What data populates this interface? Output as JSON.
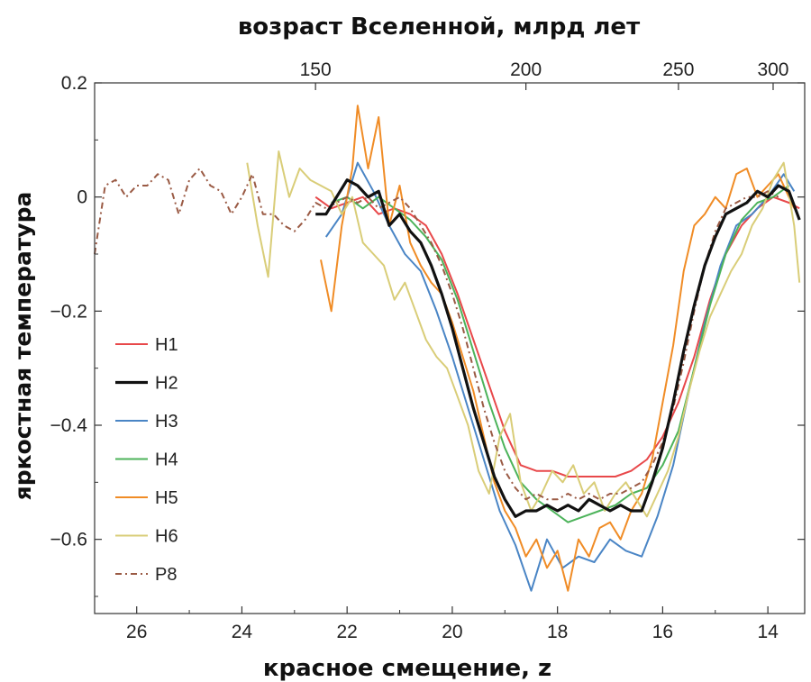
{
  "chart_data": {
    "type": "line",
    "title_top": "возраст Вселенной, млрд лет",
    "xlabel": "красное смещение, z",
    "ylabel": "яркостная температура",
    "x_reversed": true,
    "xlim": [
      26.8,
      13.3
    ],
    "ylim": [
      -0.73,
      0.2
    ],
    "x_ticks": [
      26,
      24,
      22,
      20,
      18,
      16,
      14
    ],
    "y_ticks": [
      0.2,
      0,
      -0.2,
      -0.4,
      -0.6
    ],
    "y_tick_labels": [
      "0.2",
      "0",
      "−0.2",
      "−0.4",
      "−0.6"
    ],
    "top_ticks": [
      {
        "label": "150",
        "z": 22.6
      },
      {
        "label": "200",
        "z": 18.6
      },
      {
        "label": "250",
        "z": 15.7
      },
      {
        "label": "300",
        "z": 13.9
      }
    ],
    "legend_position": "left",
    "series": [
      {
        "name": "H1",
        "color": "#e8484a",
        "width": 2,
        "dash": "",
        "x": [
          22.6,
          22.3,
          22.0,
          21.7,
          21.4,
          21.1,
          20.8,
          20.5,
          20.2,
          19.9,
          19.6,
          19.3,
          19.0,
          18.7,
          18.4,
          18.1,
          17.8,
          17.5,
          17.2,
          16.9,
          16.6,
          16.3,
          16.0,
          15.7,
          15.4,
          15.1,
          14.8,
          14.5,
          14.2,
          13.9,
          13.6,
          13.4
        ],
        "values": [
          0.0,
          -0.02,
          -0.01,
          0.0,
          -0.03,
          -0.02,
          -0.03,
          -0.05,
          -0.1,
          -0.17,
          -0.25,
          -0.33,
          -0.41,
          -0.47,
          -0.48,
          -0.48,
          -0.49,
          -0.49,
          -0.49,
          -0.49,
          -0.48,
          -0.46,
          -0.42,
          -0.36,
          -0.28,
          -0.18,
          -0.1,
          -0.05,
          -0.02,
          0.0,
          -0.01,
          -0.02
        ]
      },
      {
        "name": "H2",
        "color": "#111111",
        "width": 3.2,
        "dash": "",
        "x": [
          22.6,
          22.4,
          22.2,
          22.0,
          21.8,
          21.6,
          21.4,
          21.2,
          21.0,
          20.8,
          20.6,
          20.4,
          20.2,
          20.0,
          19.8,
          19.6,
          19.4,
          19.2,
          19.0,
          18.8,
          18.6,
          18.4,
          18.2,
          18.0,
          17.8,
          17.6,
          17.4,
          17.2,
          17.0,
          16.8,
          16.6,
          16.4,
          16.2,
          16.0,
          15.8,
          15.6,
          15.4,
          15.2,
          15.0,
          14.8,
          14.6,
          14.4,
          14.2,
          14.0,
          13.8,
          13.6,
          13.4
        ],
        "values": [
          -0.03,
          -0.03,
          0.0,
          0.03,
          0.02,
          0.0,
          0.01,
          -0.05,
          -0.03,
          -0.06,
          -0.08,
          -0.12,
          -0.17,
          -0.23,
          -0.3,
          -0.37,
          -0.43,
          -0.49,
          -0.53,
          -0.56,
          -0.55,
          -0.55,
          -0.54,
          -0.55,
          -0.54,
          -0.55,
          -0.53,
          -0.54,
          -0.55,
          -0.54,
          -0.55,
          -0.55,
          -0.5,
          -0.44,
          -0.36,
          -0.27,
          -0.19,
          -0.12,
          -0.07,
          -0.03,
          -0.02,
          -0.01,
          0.01,
          0.0,
          0.02,
          0.01,
          -0.04
        ]
      },
      {
        "name": "H3",
        "color": "#4a85c5",
        "width": 2,
        "dash": "",
        "x": [
          22.4,
          22.1,
          21.8,
          21.5,
          21.2,
          20.9,
          20.6,
          20.3,
          20.0,
          19.7,
          19.4,
          19.1,
          18.8,
          18.5,
          18.2,
          17.9,
          17.6,
          17.3,
          17.0,
          16.7,
          16.4,
          16.1,
          15.8,
          15.5,
          15.2,
          14.9,
          14.6,
          14.3,
          14.0,
          13.7,
          13.5
        ],
        "values": [
          -0.07,
          -0.03,
          0.06,
          0.01,
          -0.05,
          -0.1,
          -0.13,
          -0.2,
          -0.28,
          -0.37,
          -0.46,
          -0.55,
          -0.61,
          -0.69,
          -0.6,
          -0.65,
          -0.63,
          -0.64,
          -0.6,
          -0.62,
          -0.63,
          -0.56,
          -0.47,
          -0.34,
          -0.22,
          -0.12,
          -0.05,
          -0.03,
          0.0,
          0.04,
          0.01
        ]
      },
      {
        "name": "H4",
        "color": "#4cb35a",
        "width": 2,
        "dash": "",
        "x": [
          22.3,
          22.0,
          21.7,
          21.4,
          21.1,
          20.8,
          20.5,
          20.2,
          19.9,
          19.6,
          19.3,
          19.0,
          18.7,
          18.4,
          18.1,
          17.8,
          17.5,
          17.2,
          16.9,
          16.6,
          16.3,
          16.0,
          15.7,
          15.4,
          15.1,
          14.8,
          14.5,
          14.2,
          13.9,
          13.6
        ],
        "values": [
          -0.01,
          0.0,
          -0.02,
          0.0,
          -0.02,
          -0.04,
          -0.07,
          -0.11,
          -0.18,
          -0.27,
          -0.36,
          -0.44,
          -0.5,
          -0.53,
          -0.55,
          -0.57,
          -0.56,
          -0.55,
          -0.54,
          -0.52,
          -0.51,
          -0.47,
          -0.41,
          -0.3,
          -0.19,
          -0.1,
          -0.04,
          -0.01,
          0.0,
          0.02
        ]
      },
      {
        "name": "H5",
        "color": "#f08c26",
        "width": 2,
        "dash": "",
        "x": [
          22.5,
          22.3,
          22.1,
          21.9,
          21.8,
          21.6,
          21.4,
          21.2,
          21.0,
          20.8,
          20.6,
          20.4,
          20.2,
          20.0,
          19.8,
          19.6,
          19.4,
          19.2,
          19.0,
          18.8,
          18.6,
          18.4,
          18.2,
          18.0,
          17.8,
          17.6,
          17.4,
          17.2,
          17.0,
          16.8,
          16.6,
          16.4,
          16.2,
          16.0,
          15.8,
          15.6,
          15.4,
          15.2,
          15.0,
          14.8,
          14.6,
          14.4,
          14.2,
          14.0,
          13.8,
          13.6,
          13.5
        ],
        "values": [
          -0.11,
          -0.2,
          -0.05,
          0.05,
          0.16,
          0.05,
          0.14,
          -0.05,
          0.02,
          -0.08,
          -0.12,
          -0.15,
          -0.17,
          -0.22,
          -0.28,
          -0.34,
          -0.42,
          -0.5,
          -0.55,
          -0.58,
          -0.63,
          -0.6,
          -0.65,
          -0.62,
          -0.69,
          -0.6,
          -0.63,
          -0.58,
          -0.57,
          -0.6,
          -0.55,
          -0.52,
          -0.46,
          -0.36,
          -0.26,
          -0.13,
          -0.05,
          -0.03,
          0.0,
          -0.02,
          0.04,
          0.05,
          0.0,
          0.02,
          0.04,
          0.0,
          -0.02
        ]
      },
      {
        "name": "H6",
        "color": "#d9cd78",
        "width": 2,
        "dash": "",
        "x": [
          23.9,
          23.7,
          23.5,
          23.3,
          23.1,
          22.9,
          22.7,
          22.5,
          22.3,
          22.1,
          21.9,
          21.7,
          21.5,
          21.3,
          21.1,
          20.9,
          20.7,
          20.5,
          20.3,
          20.1,
          19.9,
          19.7,
          19.5,
          19.3,
          19.1,
          18.9,
          18.7,
          18.5,
          18.3,
          18.1,
          17.9,
          17.7,
          17.5,
          17.3,
          17.1,
          16.9,
          16.7,
          16.5,
          16.3,
          16.1,
          15.9,
          15.7,
          15.5,
          15.3,
          15.1,
          14.9,
          14.7,
          14.5,
          14.3,
          14.1,
          13.9,
          13.7,
          13.5,
          13.4
        ],
        "values": [
          0.06,
          -0.05,
          -0.14,
          0.08,
          0.0,
          0.05,
          0.03,
          0.02,
          0.01,
          -0.03,
          0.0,
          -0.08,
          -0.1,
          -0.12,
          -0.18,
          -0.15,
          -0.2,
          -0.25,
          -0.28,
          -0.3,
          -0.35,
          -0.4,
          -0.48,
          -0.52,
          -0.42,
          -0.38,
          -0.5,
          -0.55,
          -0.52,
          -0.48,
          -0.5,
          -0.47,
          -0.52,
          -0.5,
          -0.55,
          -0.52,
          -0.5,
          -0.53,
          -0.56,
          -0.52,
          -0.48,
          -0.42,
          -0.34,
          -0.27,
          -0.21,
          -0.17,
          -0.13,
          -0.1,
          -0.05,
          -0.02,
          0.03,
          0.06,
          -0.05,
          -0.15
        ]
      },
      {
        "name": "P8",
        "color": "#9a5a44",
        "width": 2,
        "dash": "7,4,2,4",
        "x": [
          26.8,
          26.6,
          26.4,
          26.2,
          26.0,
          25.8,
          25.6,
          25.4,
          25.2,
          25.0,
          24.8,
          24.6,
          24.4,
          24.2,
          24.0,
          23.8,
          23.6,
          23.4,
          23.2,
          23.0,
          22.8,
          22.6,
          22.4,
          22.2,
          22.0,
          21.8,
          21.6,
          21.4,
          21.2,
          21.0,
          20.8,
          20.6,
          20.4,
          20.2,
          20.0,
          19.8,
          19.6,
          19.4,
          19.2,
          19.0,
          18.8,
          18.6,
          18.4,
          18.2,
          18.0,
          17.8,
          17.6,
          17.4,
          17.2,
          17.0,
          16.8,
          16.6,
          16.4,
          16.2,
          16.0,
          15.8,
          15.6,
          15.4,
          15.2,
          15.0,
          14.8,
          14.6,
          14.4,
          14.2,
          14.0,
          13.8
        ],
        "values": [
          -0.1,
          0.02,
          0.03,
          0.0,
          0.02,
          0.02,
          0.04,
          0.03,
          -0.03,
          0.03,
          0.05,
          0.02,
          0.01,
          -0.03,
          0.0,
          0.04,
          -0.03,
          -0.03,
          -0.05,
          -0.06,
          -0.04,
          -0.01,
          -0.02,
          -0.01,
          0.0,
          -0.01,
          0.0,
          -0.02,
          -0.01,
          0.0,
          -0.02,
          -0.05,
          -0.08,
          -0.12,
          -0.17,
          -0.23,
          -0.3,
          -0.37,
          -0.43,
          -0.48,
          -0.51,
          -0.53,
          -0.52,
          -0.53,
          -0.53,
          -0.52,
          -0.53,
          -0.52,
          -0.53,
          -0.52,
          -0.52,
          -0.51,
          -0.5,
          -0.47,
          -0.43,
          -0.37,
          -0.29,
          -0.2,
          -0.12,
          -0.06,
          -0.02,
          -0.01,
          0.0,
          0.0,
          0.01,
          0.0
        ]
      }
    ]
  }
}
